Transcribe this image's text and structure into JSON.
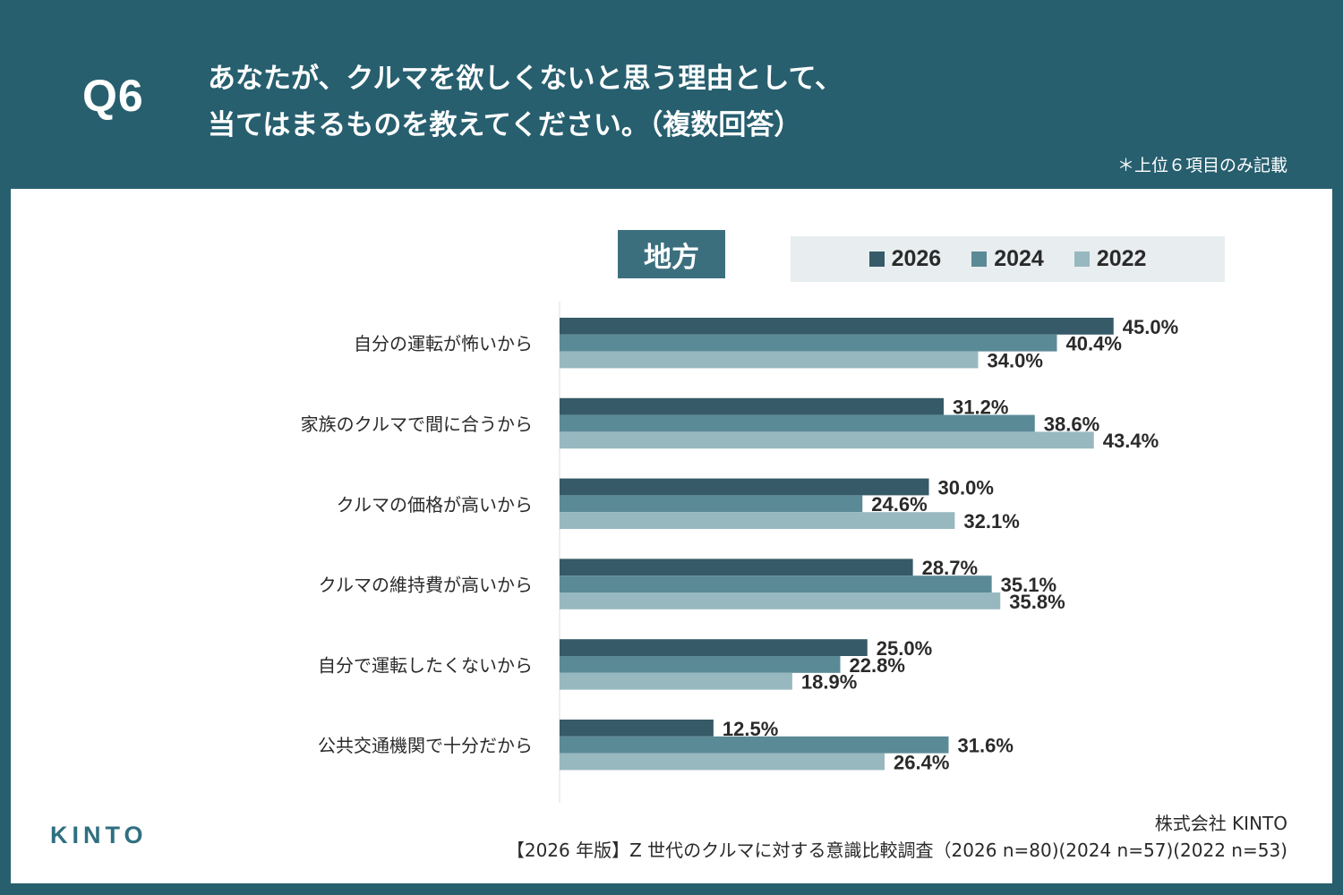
{
  "header": {
    "q_label": "Q6",
    "question_line1": "あなたが、クルマを欲しくないと思う理由として、",
    "question_line2": "当てはまるものを教えてください。（複数回答）",
    "note": "＊上位６項目のみ記載"
  },
  "region_label": "地方",
  "colors": {
    "2026": "#365a67",
    "2024": "#5a8a96",
    "2022": "#98b8c0",
    "background": "#275f6f",
    "badge": "#3c6f7e"
  },
  "legend": [
    "2026",
    "2024",
    "2022"
  ],
  "chart_data": {
    "type": "bar",
    "orientation": "horizontal",
    "categories": [
      "自分の運転が怖いから",
      "家族のクルマで間に合うから",
      "クルマの価格が高いから",
      "クルマの維持費が高いから",
      "自分で運転したくないから",
      "公共交通機関で十分だから"
    ],
    "series": [
      {
        "name": "2026",
        "values": [
          45.0,
          31.2,
          30.0,
          28.7,
          25.0,
          12.5
        ]
      },
      {
        "name": "2024",
        "values": [
          40.4,
          38.6,
          24.6,
          35.1,
          22.8,
          31.6
        ]
      },
      {
        "name": "2022",
        "values": [
          34.0,
          43.4,
          32.1,
          35.8,
          18.9,
          26.4
        ]
      }
    ],
    "value_suffix": "%",
    "xlim": [
      0,
      80
    ],
    "legend_position": "top"
  },
  "footer": {
    "logo": "KINTO",
    "company": "株式会社 KINTO",
    "survey": "【2026 年版】Z 世代のクルマに対する意識比較調査（2026 n=80)(2024 n=57)(2022 n=53)"
  }
}
